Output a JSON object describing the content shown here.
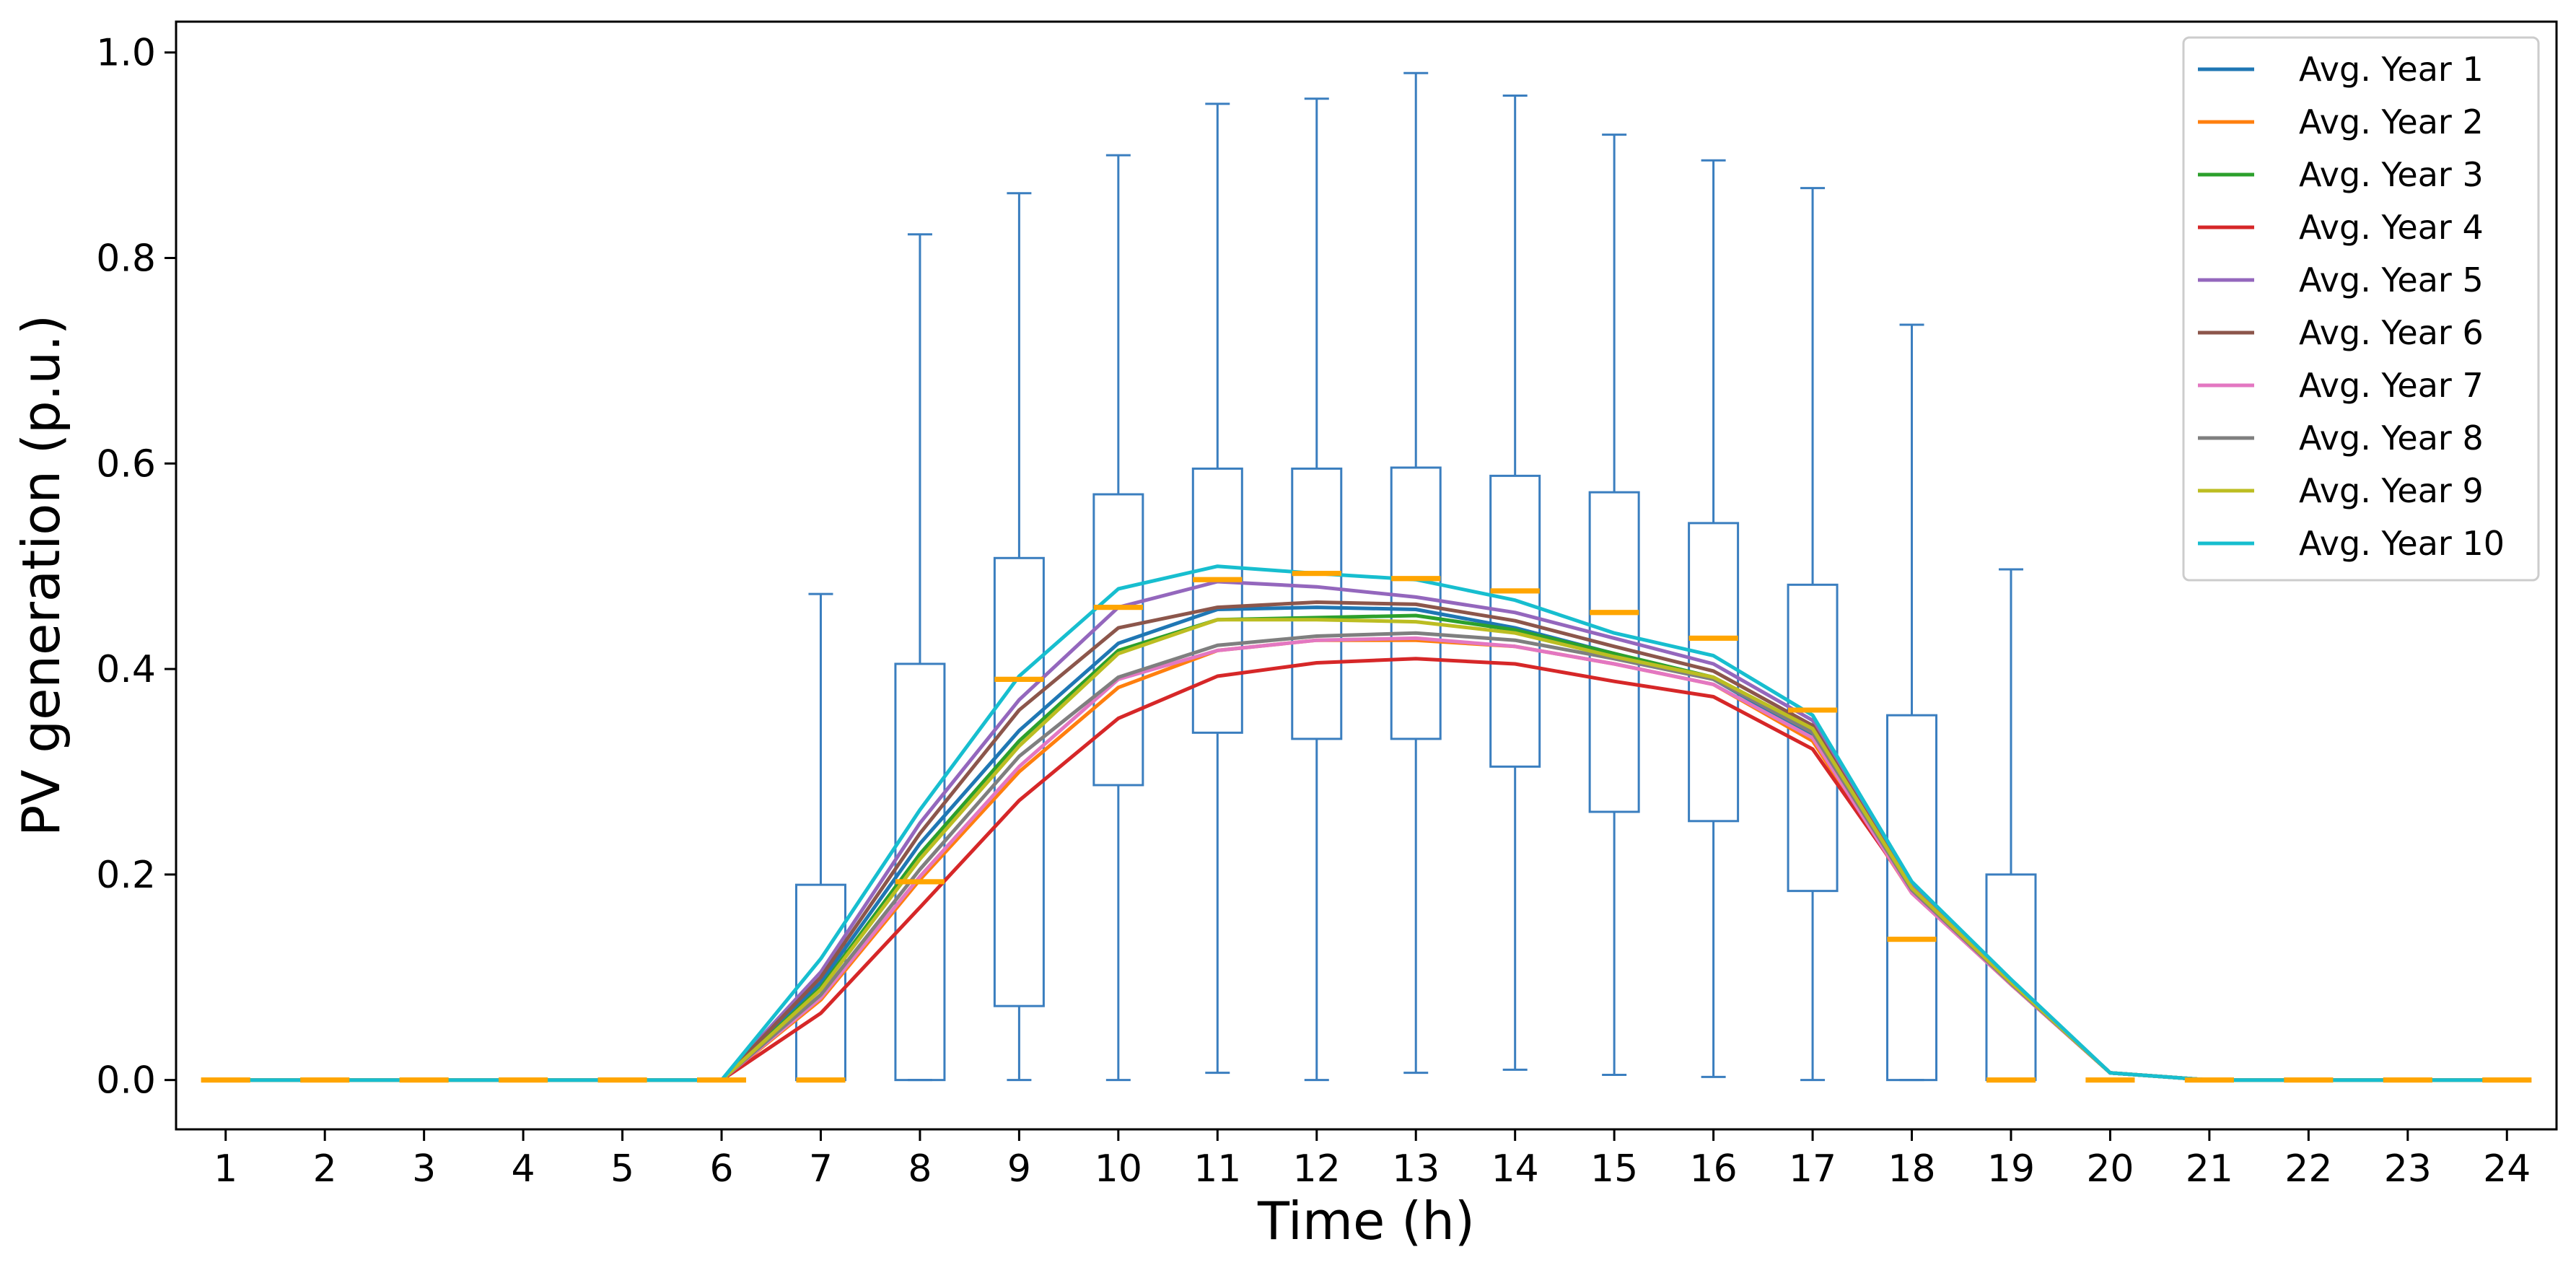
{
  "chart_data": {
    "type": "line",
    "title": "",
    "xlabel": "Time (h)",
    "ylabel": "PV generation (p.u.)",
    "x": [
      1,
      2,
      3,
      4,
      5,
      6,
      7,
      8,
      9,
      10,
      11,
      12,
      13,
      14,
      15,
      16,
      17,
      18,
      19,
      20,
      21,
      22,
      23,
      24
    ],
    "xlim": [
      0.5,
      24.5
    ],
    "ylim": [
      -0.048,
      1.03
    ],
    "yticks": [
      0.0,
      0.2,
      0.4,
      0.6,
      0.8,
      1.0
    ],
    "ytick_labels": [
      "0.0",
      "0.2",
      "0.4",
      "0.6",
      "0.8",
      "1.0"
    ],
    "xtick_labels": [
      "1",
      "2",
      "3",
      "4",
      "5",
      "6",
      "7",
      "8",
      "9",
      "10",
      "11",
      "12",
      "13",
      "14",
      "15",
      "16",
      "17",
      "18",
      "19",
      "20",
      "21",
      "22",
      "23",
      "24"
    ],
    "grid": false,
    "legend_position": "top-right",
    "boxplot": {
      "color": "#3a7ebf",
      "median_color": "#ffa500",
      "boxes": [
        {
          "x": 1,
          "whislo": 0,
          "q1": 0,
          "med": 0,
          "q3": 0,
          "whishi": 0
        },
        {
          "x": 2,
          "whislo": 0,
          "q1": 0,
          "med": 0,
          "q3": 0,
          "whishi": 0
        },
        {
          "x": 3,
          "whislo": 0,
          "q1": 0,
          "med": 0,
          "q3": 0,
          "whishi": 0
        },
        {
          "x": 4,
          "whislo": 0,
          "q1": 0,
          "med": 0,
          "q3": 0,
          "whishi": 0
        },
        {
          "x": 5,
          "whislo": 0,
          "q1": 0,
          "med": 0,
          "q3": 0,
          "whishi": 0
        },
        {
          "x": 6,
          "whislo": 0,
          "q1": 0,
          "med": 0,
          "q3": 0,
          "whishi": 0
        },
        {
          "x": 7,
          "whislo": 0,
          "q1": 0,
          "med": 0,
          "q3": 0.19,
          "whishi": 0.473
        },
        {
          "x": 8,
          "whislo": 0,
          "q1": 0,
          "med": 0.193,
          "q3": 0.405,
          "whishi": 0.823
        },
        {
          "x": 9,
          "whislo": 0,
          "q1": 0.072,
          "med": 0.39,
          "q3": 0.508,
          "whishi": 0.863
        },
        {
          "x": 10,
          "whislo": 0,
          "q1": 0.287,
          "med": 0.46,
          "q3": 0.57,
          "whishi": 0.9
        },
        {
          "x": 11,
          "whislo": 0.007,
          "q1": 0.338,
          "med": 0.487,
          "q3": 0.595,
          "whishi": 0.95
        },
        {
          "x": 12,
          "whislo": 0,
          "q1": 0.332,
          "med": 0.493,
          "q3": 0.595,
          "whishi": 0.955
        },
        {
          "x": 13,
          "whislo": 0.007,
          "q1": 0.332,
          "med": 0.488,
          "q3": 0.596,
          "whishi": 0.98
        },
        {
          "x": 14,
          "whislo": 0.01,
          "q1": 0.305,
          "med": 0.476,
          "q3": 0.588,
          "whishi": 0.958
        },
        {
          "x": 15,
          "whislo": 0.005,
          "q1": 0.261,
          "med": 0.455,
          "q3": 0.572,
          "whishi": 0.92
        },
        {
          "x": 16,
          "whislo": 0.003,
          "q1": 0.252,
          "med": 0.43,
          "q3": 0.542,
          "whishi": 0.895
        },
        {
          "x": 17,
          "whislo": 0,
          "q1": 0.184,
          "med": 0.36,
          "q3": 0.482,
          "whishi": 0.868
        },
        {
          "x": 18,
          "whislo": 0,
          "q1": 0,
          "med": 0.137,
          "q3": 0.355,
          "whishi": 0.735
        },
        {
          "x": 19,
          "whislo": 0,
          "q1": 0,
          "med": 0,
          "q3": 0.2,
          "whishi": 0.497
        },
        {
          "x": 20,
          "whislo": 0,
          "q1": 0,
          "med": 0,
          "q3": 0,
          "whishi": 0
        },
        {
          "x": 21,
          "whislo": 0,
          "q1": 0,
          "med": 0,
          "q3": 0,
          "whishi": 0
        },
        {
          "x": 22,
          "whislo": 0,
          "q1": 0,
          "med": 0,
          "q3": 0,
          "whishi": 0
        },
        {
          "x": 23,
          "whislo": 0,
          "q1": 0,
          "med": 0,
          "q3": 0,
          "whishi": 0
        },
        {
          "x": 24,
          "whislo": 0,
          "q1": 0,
          "med": 0,
          "q3": 0,
          "whishi": 0
        }
      ]
    },
    "series": [
      {
        "name": "Avg. Year 1",
        "color": "#1f77b4",
        "values": [
          0,
          0,
          0,
          0,
          0,
          0,
          0.095,
          0.23,
          0.34,
          0.425,
          0.458,
          0.46,
          0.458,
          0.44,
          0.415,
          0.39,
          0.335,
          0.185,
          0.095,
          0.007,
          0,
          0,
          0,
          0
        ]
      },
      {
        "name": "Avg. Year 2",
        "color": "#ff7f0e",
        "values": [
          0,
          0,
          0,
          0,
          0,
          0,
          0.078,
          0.195,
          0.3,
          0.382,
          0.418,
          0.428,
          0.428,
          0.422,
          0.405,
          0.385,
          0.33,
          0.182,
          0.093,
          0.007,
          0,
          0,
          0,
          0
        ]
      },
      {
        "name": "Avg. Year 3",
        "color": "#2ca02c",
        "values": [
          0,
          0,
          0,
          0,
          0,
          0,
          0.09,
          0.22,
          0.33,
          0.418,
          0.448,
          0.45,
          0.452,
          0.438,
          0.415,
          0.392,
          0.338,
          0.185,
          0.095,
          0.007,
          0,
          0,
          0,
          0
        ]
      },
      {
        "name": "Avg. Year 4",
        "color": "#d62728",
        "values": [
          0,
          0,
          0,
          0,
          0,
          0,
          0.065,
          0.168,
          0.272,
          0.352,
          0.393,
          0.406,
          0.41,
          0.405,
          0.388,
          0.373,
          0.322,
          0.185,
          0.093,
          0.007,
          0,
          0,
          0,
          0
        ]
      },
      {
        "name": "Avg. Year 5",
        "color": "#9467bd",
        "values": [
          0,
          0,
          0,
          0,
          0,
          0,
          0.105,
          0.25,
          0.37,
          0.46,
          0.485,
          0.48,
          0.47,
          0.455,
          0.43,
          0.405,
          0.35,
          0.19,
          0.097,
          0.007,
          0,
          0,
          0,
          0
        ]
      },
      {
        "name": "Avg. Year 6",
        "color": "#8c564b",
        "values": [
          0,
          0,
          0,
          0,
          0,
          0,
          0.1,
          0.24,
          0.36,
          0.44,
          0.46,
          0.465,
          0.463,
          0.447,
          0.422,
          0.398,
          0.345,
          0.187,
          0.096,
          0.007,
          0,
          0,
          0,
          0
        ]
      },
      {
        "name": "Avg. Year 7",
        "color": "#e377c2",
        "values": [
          0,
          0,
          0,
          0,
          0,
          0,
          0.08,
          0.198,
          0.305,
          0.39,
          0.418,
          0.428,
          0.43,
          0.422,
          0.405,
          0.385,
          0.333,
          0.182,
          0.093,
          0.007,
          0,
          0,
          0,
          0
        ]
      },
      {
        "name": "Avg. Year 8",
        "color": "#7f7f7f",
        "values": [
          0,
          0,
          0,
          0,
          0,
          0,
          0.083,
          0.205,
          0.315,
          0.392,
          0.423,
          0.432,
          0.435,
          0.428,
          0.41,
          0.39,
          0.338,
          0.185,
          0.094,
          0.007,
          0,
          0,
          0,
          0
        ]
      },
      {
        "name": "Avg. Year 9",
        "color": "#bcbd22",
        "values": [
          0,
          0,
          0,
          0,
          0,
          0,
          0.088,
          0.215,
          0.325,
          0.415,
          0.448,
          0.448,
          0.446,
          0.435,
          0.412,
          0.392,
          0.342,
          0.187,
          0.095,
          0.007,
          0,
          0,
          0,
          0
        ]
      },
      {
        "name": "Avg. Year 10",
        "color": "#17becf",
        "values": [
          0,
          0,
          0,
          0,
          0,
          0,
          0.118,
          0.263,
          0.393,
          0.478,
          0.5,
          0.493,
          0.487,
          0.467,
          0.435,
          0.413,
          0.355,
          0.193,
          0.098,
          0.007,
          0,
          0,
          0,
          0
        ]
      }
    ]
  }
}
